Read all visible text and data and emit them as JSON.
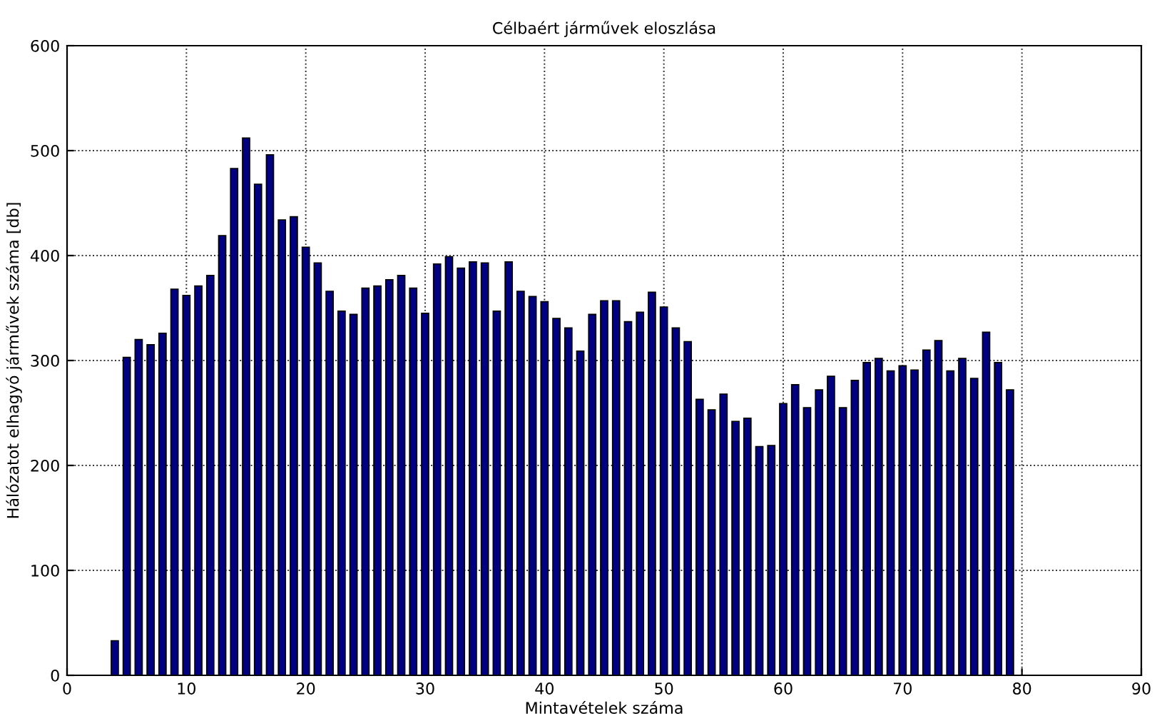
{
  "chart_data": {
    "type": "bar",
    "title": "Célbaért járművek eloszlása",
    "xlabel": "Mintavételek száma",
    "ylabel": "Hálózatot elhagyó járművek száma [db]",
    "x": [
      4,
      5,
      6,
      7,
      8,
      9,
      10,
      11,
      12,
      13,
      14,
      15,
      16,
      17,
      18,
      19,
      20,
      21,
      22,
      23,
      24,
      25,
      26,
      27,
      28,
      29,
      30,
      31,
      32,
      33,
      34,
      35,
      36,
      37,
      38,
      39,
      40,
      41,
      42,
      43,
      44,
      45,
      46,
      47,
      48,
      49,
      50,
      51,
      52,
      53,
      54,
      55,
      56,
      57,
      58,
      59,
      60,
      61,
      62,
      63,
      64,
      65,
      66,
      67,
      68,
      69,
      70,
      71,
      72,
      73,
      74,
      75,
      76,
      77,
      78,
      79
    ],
    "values": [
      33,
      303,
      320,
      315,
      326,
      368,
      362,
      371,
      381,
      419,
      483,
      512,
      468,
      496,
      434,
      437,
      408,
      393,
      366,
      347,
      344,
      369,
      371,
      377,
      381,
      369,
      345,
      392,
      399,
      388,
      394,
      393,
      347,
      394,
      366,
      361,
      356,
      340,
      331,
      309,
      344,
      357,
      357,
      337,
      346,
      365,
      351,
      331,
      318,
      263,
      253,
      268,
      242,
      245,
      218,
      219,
      259,
      277,
      255,
      272,
      285,
      255,
      281,
      298,
      302,
      290,
      295,
      291,
      310,
      319,
      290,
      302,
      283,
      327,
      298,
      272
    ],
    "color": "#000080",
    "xlim": [
      0,
      90
    ],
    "xticks": [
      0,
      10,
      20,
      30,
      40,
      50,
      60,
      70,
      80,
      90
    ],
    "ylim": [
      0,
      600
    ],
    "yticks": [
      0,
      100,
      200,
      300,
      400,
      500,
      600
    ],
    "grid": true
  }
}
